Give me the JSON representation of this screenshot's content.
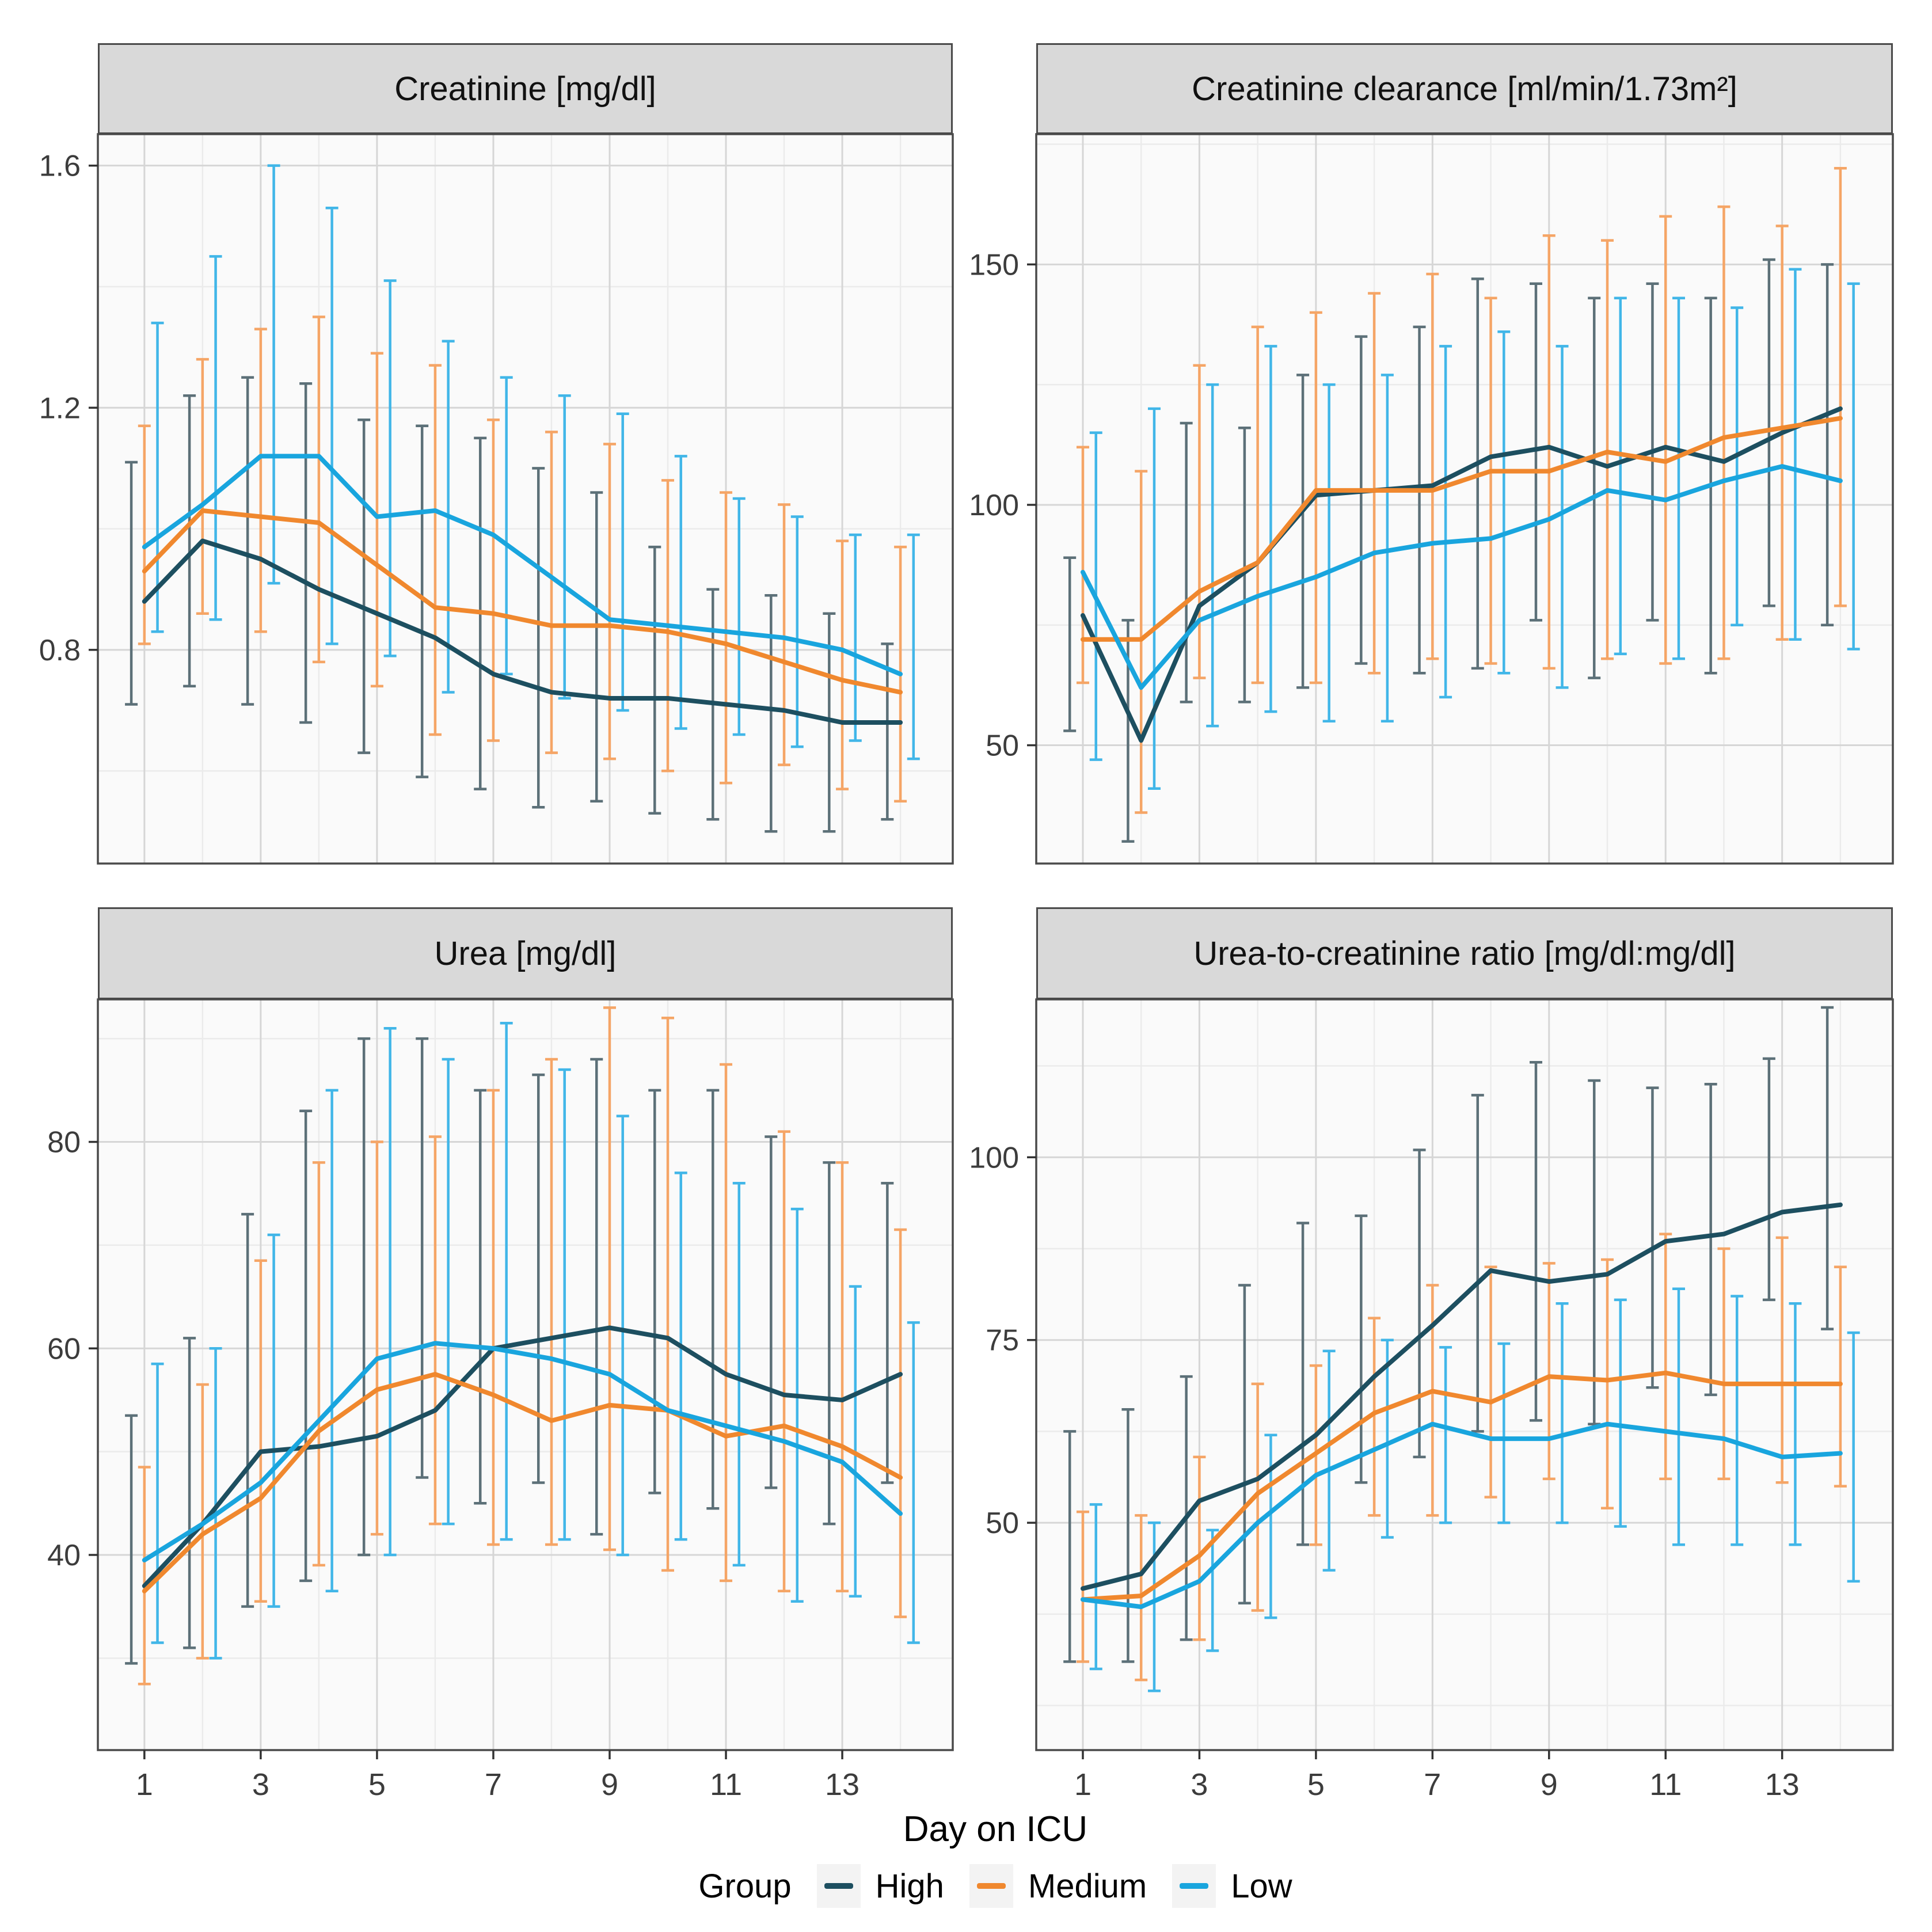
{
  "axis": {
    "x_label": "Day on ICU",
    "x_tick_labels": [
      "1",
      "3",
      "5",
      "7",
      "9",
      "11",
      "13"
    ],
    "x_tick_values": [
      1,
      3,
      5,
      7,
      9,
      11,
      13
    ],
    "x_minor_values": [
      2,
      4,
      6,
      8,
      10,
      12,
      14
    ]
  },
  "legend": {
    "title": "Group",
    "items": [
      {
        "label": "High",
        "color": "#1d4f60"
      },
      {
        "label": "Medium",
        "color": "#f0882e"
      },
      {
        "label": "Low",
        "color": "#19a5de"
      }
    ]
  },
  "days": [
    1,
    2,
    3,
    4,
    5,
    6,
    7,
    8,
    9,
    10,
    11,
    12,
    13,
    14
  ],
  "chart_data": [
    {
      "type": "line",
      "title": "Creatinine [mg/dl]",
      "x": [
        1,
        2,
        3,
        4,
        5,
        6,
        7,
        8,
        9,
        10,
        11,
        12,
        13,
        14
      ],
      "xlabel": "Day on ICU",
      "ylabel": "Creatinine [mg/dl]",
      "ylim": [
        0.447,
        1.652
      ],
      "y_ticks": [
        0.8,
        1.2,
        1.6
      ],
      "y_tick_labels": [
        "0.8",
        "1.2",
        "1.6"
      ],
      "y_minor": [
        0.6,
        1.0,
        1.4
      ],
      "grid": true,
      "legend_position": "bottom",
      "error_bars": true,
      "series": [
        {
          "name": "High",
          "mean": [
            0.88,
            0.98,
            0.95,
            0.9,
            0.86,
            0.82,
            0.76,
            0.73,
            0.72,
            0.72,
            0.71,
            0.7,
            0.68,
            0.68
          ],
          "lo": [
            0.71,
            0.74,
            0.71,
            0.68,
            0.63,
            0.59,
            0.57,
            0.54,
            0.55,
            0.53,
            0.52,
            0.5,
            0.5,
            0.52
          ],
          "hi": [
            1.11,
            1.22,
            1.25,
            1.24,
            1.18,
            1.17,
            1.15,
            1.1,
            1.06,
            0.97,
            0.9,
            0.89,
            0.86,
            0.81
          ]
        },
        {
          "name": "Medium",
          "mean": [
            0.93,
            1.03,
            1.02,
            1.01,
            0.94,
            0.87,
            0.86,
            0.84,
            0.84,
            0.83,
            0.81,
            0.78,
            0.75,
            0.73
          ],
          "lo": [
            0.81,
            0.86,
            0.83,
            0.78,
            0.74,
            0.66,
            0.65,
            0.63,
            0.62,
            0.6,
            0.58,
            0.61,
            0.57,
            0.55
          ],
          "hi": [
            1.17,
            1.28,
            1.33,
            1.35,
            1.29,
            1.27,
            1.18,
            1.16,
            1.14,
            1.08,
            1.06,
            1.04,
            0.98,
            0.97
          ]
        },
        {
          "name": "Low",
          "mean": [
            0.97,
            1.04,
            1.12,
            1.12,
            1.02,
            1.03,
            0.99,
            0.92,
            0.85,
            0.84,
            0.83,
            0.82,
            0.8,
            0.76
          ],
          "lo": [
            0.83,
            0.85,
            0.91,
            0.81,
            0.79,
            0.73,
            0.76,
            0.72,
            0.7,
            0.67,
            0.66,
            0.64,
            0.65,
            0.62
          ],
          "hi": [
            1.34,
            1.45,
            1.6,
            1.53,
            1.41,
            1.31,
            1.25,
            1.22,
            1.19,
            1.12,
            1.05,
            1.02,
            0.99,
            0.99
          ]
        }
      ]
    },
    {
      "type": "line",
      "title": "Creatinine clearance [ml/min/1.73m²]",
      "x": [
        1,
        2,
        3,
        4,
        5,
        6,
        7,
        8,
        9,
        10,
        11,
        12,
        13,
        14
      ],
      "xlabel": "Day on ICU",
      "ylabel": "Creatinine clearance [ml/min/1.73m²]",
      "ylim": [
        25.4,
        177.1
      ],
      "y_ticks": [
        50,
        100,
        150
      ],
      "y_tick_labels": [
        "50",
        "100",
        "150"
      ],
      "y_minor": [
        75,
        125,
        175
      ],
      "grid": true,
      "legend_position": "bottom",
      "error_bars": true,
      "series": [
        {
          "name": "High",
          "mean": [
            77,
            51,
            79,
            88,
            102,
            103,
            104,
            110,
            112,
            108,
            112,
            109,
            115,
            120
          ],
          "lo": [
            53,
            30,
            59,
            59,
            62,
            67,
            65,
            66,
            76,
            64,
            76,
            65,
            79,
            75
          ],
          "hi": [
            89,
            76,
            117,
            116,
            127,
            135,
            137,
            147,
            146,
            143,
            146,
            143,
            151,
            150
          ]
        },
        {
          "name": "Medium",
          "mean": [
            72,
            72,
            82,
            88,
            103,
            103,
            103,
            107,
            107,
            111,
            109,
            114,
            116,
            118
          ],
          "lo": [
            63,
            36,
            64,
            63,
            63,
            65,
            68,
            67,
            66,
            68,
            67,
            68,
            72,
            79
          ],
          "hi": [
            112,
            107,
            129,
            137,
            140,
            144,
            148,
            143,
            156,
            155,
            160,
            162,
            158,
            170
          ]
        },
        {
          "name": "Low",
          "mean": [
            86,
            62,
            76,
            81,
            85,
            90,
            92,
            93,
            97,
            103,
            101,
            105,
            108,
            105
          ],
          "lo": [
            47,
            41,
            54,
            57,
            55,
            55,
            60,
            65,
            62,
            69,
            68,
            75,
            72,
            70
          ],
          "hi": [
            115,
            120,
            125,
            133,
            125,
            127,
            133,
            136,
            133,
            143,
            143,
            141,
            149,
            146
          ]
        }
      ]
    },
    {
      "type": "line",
      "title": "Urea [mg/dl]",
      "x": [
        1,
        2,
        3,
        4,
        5,
        6,
        7,
        8,
        9,
        10,
        11,
        12,
        13,
        14
      ],
      "xlabel": "Day on ICU",
      "ylabel": "Urea [mg/dl]",
      "ylim": [
        21.1,
        93.8
      ],
      "y_ticks": [
        40,
        60,
        80
      ],
      "y_tick_labels": [
        "40",
        "60",
        "80"
      ],
      "y_minor": [
        30,
        50,
        70,
        90
      ],
      "grid": true,
      "legend_position": "bottom",
      "error_bars": true,
      "series": [
        {
          "name": "High",
          "mean": [
            37,
            43,
            50,
            50.5,
            51.5,
            54,
            60,
            61,
            62,
            61,
            57.5,
            55.5,
            55,
            57.5
          ],
          "lo": [
            29.5,
            31,
            35,
            37.5,
            40,
            47.5,
            45,
            47,
            42,
            46,
            44.5,
            46.5,
            43,
            47
          ],
          "hi": [
            53.5,
            61,
            73,
            83,
            90,
            90,
            85,
            86.5,
            88,
            85,
            85,
            80.5,
            78,
            76
          ]
        },
        {
          "name": "Medium",
          "mean": [
            36.5,
            42,
            45.5,
            52,
            56,
            57.5,
            55.5,
            53,
            54.5,
            54,
            51.5,
            52.5,
            50.5,
            47.5
          ],
          "lo": [
            27.5,
            30,
            35.5,
            39,
            42,
            43,
            41,
            41,
            40.5,
            38.5,
            37.5,
            36.5,
            36.5,
            34
          ],
          "hi": [
            48.5,
            56.5,
            68.5,
            78,
            80,
            80.5,
            85,
            88,
            93,
            92,
            87.5,
            81,
            78,
            71.5
          ]
        },
        {
          "name": "Low",
          "mean": [
            39.5,
            43,
            47,
            53,
            59,
            60.5,
            60,
            59,
            57.5,
            54,
            52.5,
            51,
            49,
            44
          ],
          "lo": [
            31.5,
            30,
            35,
            36.5,
            40,
            43,
            41.5,
            41.5,
            40,
            41.5,
            39,
            35.5,
            36,
            31.5
          ],
          "hi": [
            58.5,
            60,
            71,
            85,
            91,
            88,
            91.5,
            87,
            82.5,
            77,
            76,
            73.5,
            66,
            62.5
          ]
        }
      ]
    },
    {
      "type": "line",
      "title": "Urea-to-creatinine ratio [mg/dl:mg/dl]",
      "x": [
        1,
        2,
        3,
        4,
        5,
        6,
        7,
        8,
        9,
        10,
        11,
        12,
        13,
        14
      ],
      "xlabel": "Day on ICU",
      "ylabel": "Urea-to-creatinine ratio [mg/dl:mg/dl]",
      "ylim": [
        18.9,
        121.6
      ],
      "y_ticks": [
        50,
        75,
        100
      ],
      "y_tick_labels": [
        "50",
        "75",
        "100"
      ],
      "y_minor": [
        25,
        37.5,
        62.5,
        87.5,
        112.5
      ],
      "grid": true,
      "legend_position": "bottom",
      "error_bars": true,
      "series": [
        {
          "name": "High",
          "mean": [
            41,
            43,
            53,
            56,
            62,
            70,
            77,
            84.5,
            83,
            84,
            88.5,
            89.5,
            92.5,
            93.5
          ],
          "lo": [
            31,
            31,
            34,
            39,
            47,
            55.5,
            59,
            62.5,
            64,
            63.5,
            68.5,
            67.5,
            80.5,
            76.5
          ],
          "hi": [
            62.5,
            65.5,
            70,
            82.5,
            91,
            92,
            101,
            108.5,
            113,
            110.5,
            109.5,
            110,
            113.5,
            120.5
          ]
        },
        {
          "name": "Medium",
          "mean": [
            39.5,
            40,
            45.5,
            54,
            59.5,
            65,
            68,
            66.5,
            70,
            69.5,
            70.5,
            69,
            69,
            69
          ],
          "lo": [
            31,
            28.5,
            34,
            38,
            47,
            51,
            51,
            53.5,
            56,
            52,
            56,
            56,
            55.5,
            55
          ],
          "hi": [
            51.5,
            51,
            59,
            69,
            71.5,
            78,
            82.5,
            85,
            85.5,
            86,
            89.5,
            87.5,
            89,
            85
          ]
        },
        {
          "name": "Low",
          "mean": [
            39.5,
            38.5,
            42,
            50,
            56.5,
            60,
            63.5,
            61.5,
            61.5,
            63.5,
            62.5,
            61.5,
            59,
            59.5
          ],
          "lo": [
            30,
            27,
            32.5,
            37,
            43.5,
            48,
            50,
            50,
            50,
            49.5,
            47,
            47,
            47,
            42
          ],
          "hi": [
            52.5,
            50,
            49,
            62,
            73.5,
            75,
            74,
            74.5,
            80,
            80.5,
            82,
            81,
            80,
            76
          ]
        }
      ]
    }
  ],
  "style": {
    "series_line_colors": [
      "#1d4f60",
      "#f0882e",
      "#19a5de"
    ],
    "series_bar_colors": [
      "#5c7078",
      "#f5a566",
      "#41b6e8"
    ],
    "panel_bg": "#fafafa",
    "grid_major": "#d6d6d6",
    "grid_minor": "#ebebeb",
    "panel_border": "#4a4a4a",
    "strip_bg": "#d9d9d9",
    "tick_text": "#3c3c3c"
  }
}
